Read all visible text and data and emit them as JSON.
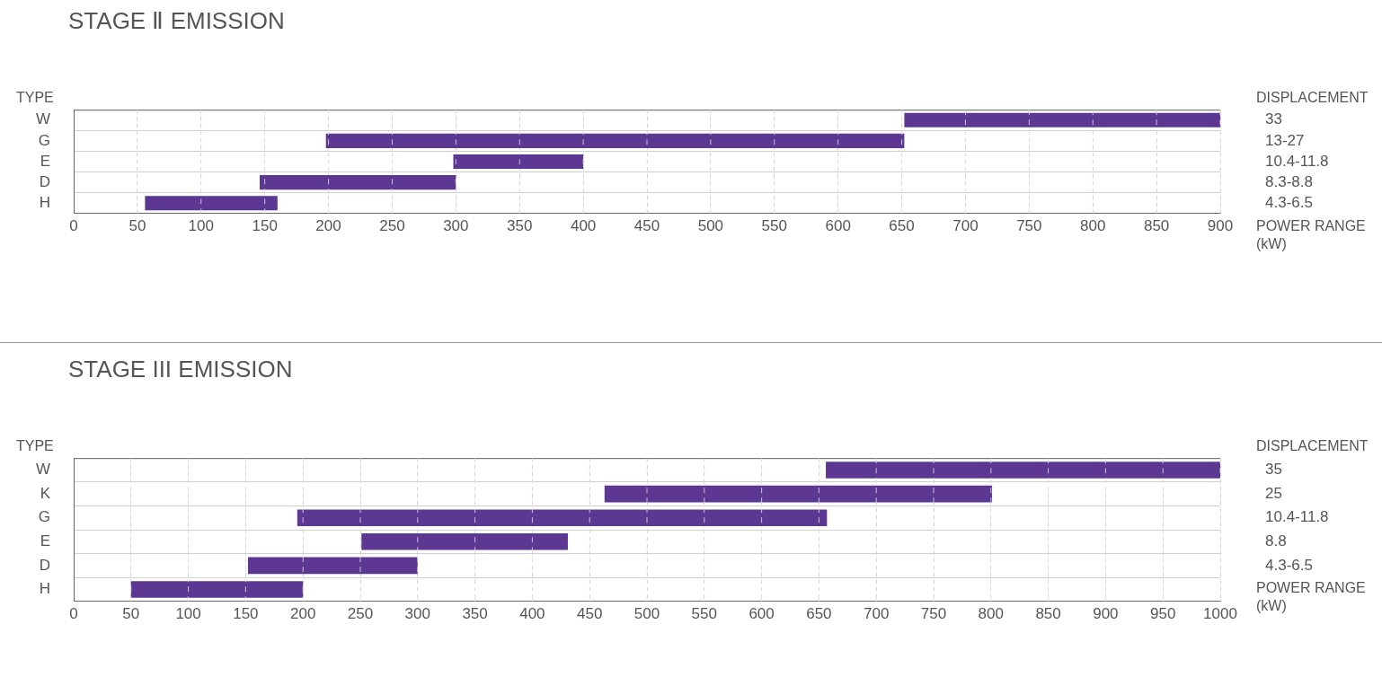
{
  "chart_data": [
    {
      "type": "bar",
      "orientation": "horizontal",
      "title": "STAGE Ⅱ EMISSION",
      "ylabel": "TYPE",
      "y2label": "DISPLACEMENT",
      "xlabel": "POWER RANGE (kW)",
      "categories": [
        "W",
        "G",
        "E",
        "D",
        "H"
      ],
      "y2_categories": [
        "33",
        "13-27",
        "10.4-11.8",
        "8.3-8.8",
        "4.3-6.5"
      ],
      "base": [
        652,
        198,
        298,
        146,
        56
      ],
      "values": [
        248,
        454,
        102,
        154,
        104
      ],
      "color": "#5c3892",
      "xlim": [
        0,
        900
      ],
      "xticks": [
        0,
        50,
        100,
        150,
        200,
        250,
        300,
        350,
        400,
        450,
        500,
        550,
        600,
        650,
        700,
        750,
        800,
        850,
        900
      ],
      "grid": true,
      "legend": false
    },
    {
      "type": "bar",
      "orientation": "horizontal",
      "title": "STAGE III EMISSION",
      "ylabel": "TYPE",
      "y2label": "DISPLACEMENT",
      "xlabel": "POWER RANGE (kW)",
      "categories": [
        "W",
        "K",
        "G",
        "E",
        "D",
        "H"
      ],
      "y2_categories": [
        "35",
        "25",
        "10.4-11.8",
        "8.8",
        "4.3-6.5",
        null
      ],
      "base": [
        656,
        463,
        195,
        251,
        152,
        50
      ],
      "values": [
        344,
        338,
        462,
        180,
        148,
        150
      ],
      "color": "#5c3892",
      "xlim": [
        0,
        1000
      ],
      "xticks": [
        0,
        50,
        100,
        150,
        200,
        250,
        300,
        350,
        400,
        450,
        500,
        550,
        600,
        650,
        700,
        750,
        800,
        850,
        900,
        950,
        1000
      ],
      "grid": true,
      "legend": false
    }
  ]
}
